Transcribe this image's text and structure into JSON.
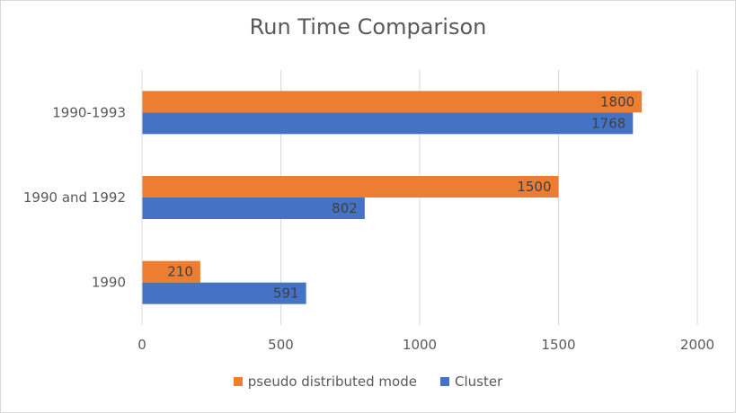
{
  "chart_data": {
    "type": "bar",
    "orientation": "horizontal",
    "title": "Run Time Comparison",
    "xlabel": "",
    "ylabel": "",
    "categories": [
      "1990-1993",
      "1990 and 1992",
      "1990"
    ],
    "series": [
      {
        "name": "pseudo distributed mode",
        "color": "#ed7d31",
        "values": [
          1800,
          1500,
          210
        ]
      },
      {
        "name": "Cluster",
        "color": "#4472c4",
        "values": [
          1768,
          802,
          591
        ]
      }
    ],
    "xlim": [
      0,
      2000
    ],
    "xticks": [
      0,
      500,
      1000,
      1500,
      2000
    ],
    "grid": true,
    "legend_position": "bottom",
    "data_labels": true
  }
}
